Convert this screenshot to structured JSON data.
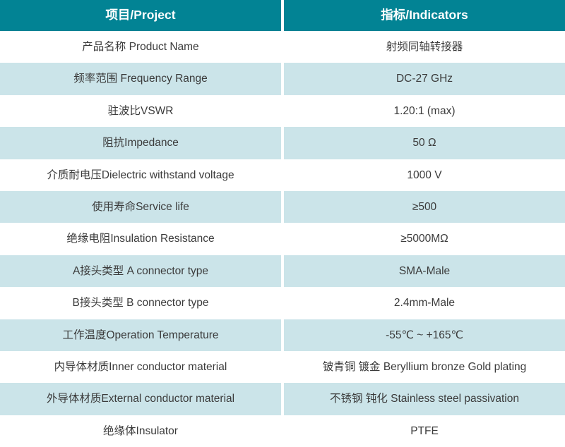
{
  "table": {
    "headers": [
      {
        "label": "项目/Project"
      },
      {
        "label": "指标/Indicators"
      }
    ],
    "rows": [
      {
        "project": "产品名称 Product Name",
        "indicator": "射频同轴转接器"
      },
      {
        "project": "频率范围 Frequency Range",
        "indicator": "DC-27 GHz"
      },
      {
        "project": "驻波比VSWR",
        "indicator": "1.20:1 (max)"
      },
      {
        "project": "阻抗Impedance",
        "indicator": "50 Ω"
      },
      {
        "project": "介质耐电压Dielectric withstand voltage",
        "indicator": "1000 V"
      },
      {
        "project": "使用寿命Service life",
        "indicator": "≥500"
      },
      {
        "project": "绝缘电阻Insulation Resistance",
        "indicator": "≥5000MΩ"
      },
      {
        "project": "A接头类型 A connector type",
        "indicator": "SMA-Male"
      },
      {
        "project": "B接头类型 B connector type",
        "indicator": "2.4mm-Male"
      },
      {
        "project": "工作温度Operation Temperature",
        "indicator": "-55℃ ~ +165℃"
      },
      {
        "project": "内导体材质Inner conductor material",
        "indicator": "铍青铜 镀金 Beryllium bronze Gold plating"
      },
      {
        "project": "外导体材质External conductor material",
        "indicator": "不锈钢 钝化 Stainless steel passivation"
      },
      {
        "project": "绝缘体Insulator",
        "indicator": "PTFE"
      }
    ],
    "colors": {
      "header_bg": "#028394",
      "header_text": "#ffffff",
      "row_bg": "#ffffff",
      "row_alt_bg": "#cbe4e9",
      "body_text": "#3b3b3b",
      "divider": "#ffffff"
    }
  }
}
